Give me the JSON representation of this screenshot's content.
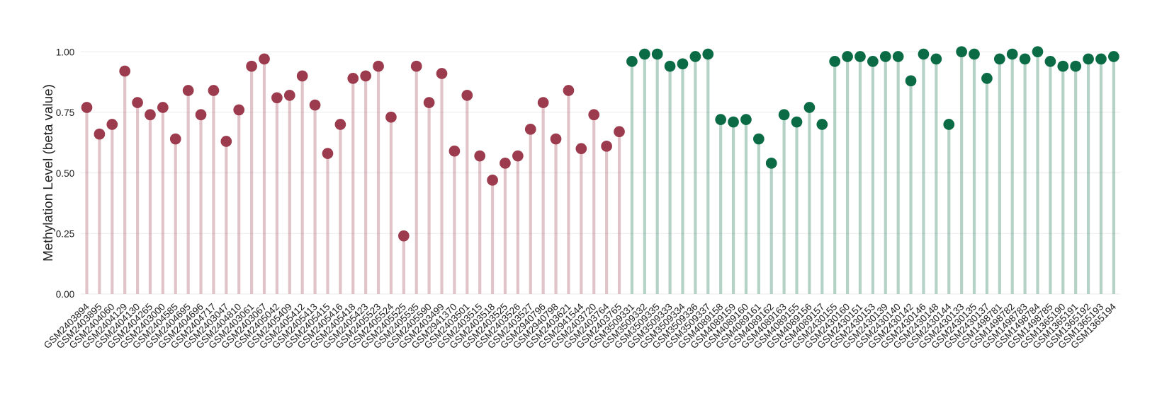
{
  "chart_data": {
    "type": "lollipop",
    "y_label": "Methylation Level (beta value)",
    "categories": [
      "GSM2403894",
      "GSM2403895",
      "GSM2404060",
      "GSM2404129",
      "GSM2404130",
      "GSM2404265",
      "GSM2403000",
      "GSM2404585",
      "GSM2404695",
      "GSM2404696",
      "GSM2404717",
      "GSM2403047",
      "GSM2404810",
      "GSM2403061",
      "GSM2403067",
      "GSM2405042",
      "GSM2405409",
      "GSM2405412",
      "GSM2405413",
      "GSM2405415",
      "GSM2405416",
      "GSM2405418",
      "GSM2405423",
      "GSM2405523",
      "GSM2405524",
      "GSM2405525",
      "GSM2405535",
      "GSM2405590",
      "GSM2403499",
      "GSM2941370",
      "GSM2403501",
      "GSM2403515",
      "GSM2403518",
      "GSM2403525",
      "GSM2403526",
      "GSM2403527",
      "GSM2940796",
      "GSM2940798",
      "GSM2403621",
      "GSM2941544",
      "GSM2403720",
      "GSM2403764",
      "GSM2403765",
      "GSM3509331",
      "GSM3509332",
      "GSM3509335",
      "GSM3509333",
      "GSM3509334",
      "GSM3509336",
      "GSM3509337",
      "GSM4089158",
      "GSM4089159",
      "GSM4089160",
      "GSM4089161",
      "GSM4089162",
      "GSM4089163",
      "GSM4089155",
      "GSM4089156",
      "GSM4089157",
      "GSM2430155",
      "GSM2430160",
      "GSM2430151",
      "GSM2430153",
      "GSM2430139",
      "GSM2430140",
      "GSM2430142",
      "GSM2430146",
      "GSM2430148",
      "GSM2430144",
      "GSM2430133",
      "GSM2430135",
      "GSM2430137",
      "GSM1498781",
      "GSM1498782",
      "GSM1498783",
      "GSM1498784",
      "GSM1498785",
      "GSM1365190",
      "GSM1365191",
      "GSM1365192",
      "GSM1365193",
      "GSM1365194"
    ],
    "series": [
      {
        "color": "#9b3b4d",
        "values": [
          0.77,
          0.66,
          0.7,
          0.92,
          0.79,
          0.74,
          0.77,
          0.64,
          0.84,
          0.74,
          0.84,
          0.63,
          0.76,
          0.94,
          0.97,
          0.81,
          0.82,
          0.9,
          0.78,
          0.58,
          0.7,
          0.89,
          0.9,
          0.94,
          0.73,
          0.24,
          0.94,
          0.79,
          0.91,
          0.59,
          0.82,
          0.57,
          0.47,
          0.54,
          0.57,
          0.68,
          0.79,
          0.64,
          0.84,
          0.6,
          0.74,
          0.61,
          0.67,
          null,
          null,
          null,
          null,
          null,
          null,
          null,
          null,
          null,
          null,
          null,
          null,
          null,
          null,
          null,
          null,
          null,
          null,
          null,
          null,
          null,
          null,
          null,
          null,
          null,
          null,
          null,
          null,
          null,
          null,
          null,
          null,
          null,
          null,
          null,
          null,
          null,
          null,
          null
        ]
      },
      {
        "color": "#0a6b45",
        "values": [
          null,
          null,
          null,
          null,
          null,
          null,
          null,
          null,
          null,
          null,
          null,
          null,
          null,
          null,
          null,
          null,
          null,
          null,
          null,
          null,
          null,
          null,
          null,
          null,
          null,
          null,
          null,
          null,
          null,
          null,
          null,
          null,
          null,
          null,
          null,
          null,
          null,
          null,
          null,
          null,
          null,
          null,
          null,
          0.96,
          0.99,
          0.99,
          0.94,
          0.95,
          0.98,
          0.99,
          0.72,
          0.71,
          0.72,
          0.64,
          0.54,
          0.74,
          0.71,
          0.77,
          0.7,
          0.96,
          0.98,
          0.98,
          0.96,
          0.98,
          0.98,
          0.88,
          0.99,
          0.97,
          0.7,
          1.0,
          0.99,
          0.89,
          0.97,
          0.99,
          0.97,
          1.0,
          0.96,
          0.94,
          0.94,
          0.97,
          0.97,
          0.98
        ]
      }
    ],
    "ylim": [
      0,
      1
    ],
    "yticks": [
      {
        "value": 0,
        "label": "0.00"
      },
      {
        "value": 0.25,
        "label": "0.25"
      },
      {
        "value": 0.5,
        "label": "0.50"
      },
      {
        "value": 0.75,
        "label": "0.75"
      },
      {
        "value": 1,
        "label": "1.00"
      }
    ],
    "grid": true
  }
}
